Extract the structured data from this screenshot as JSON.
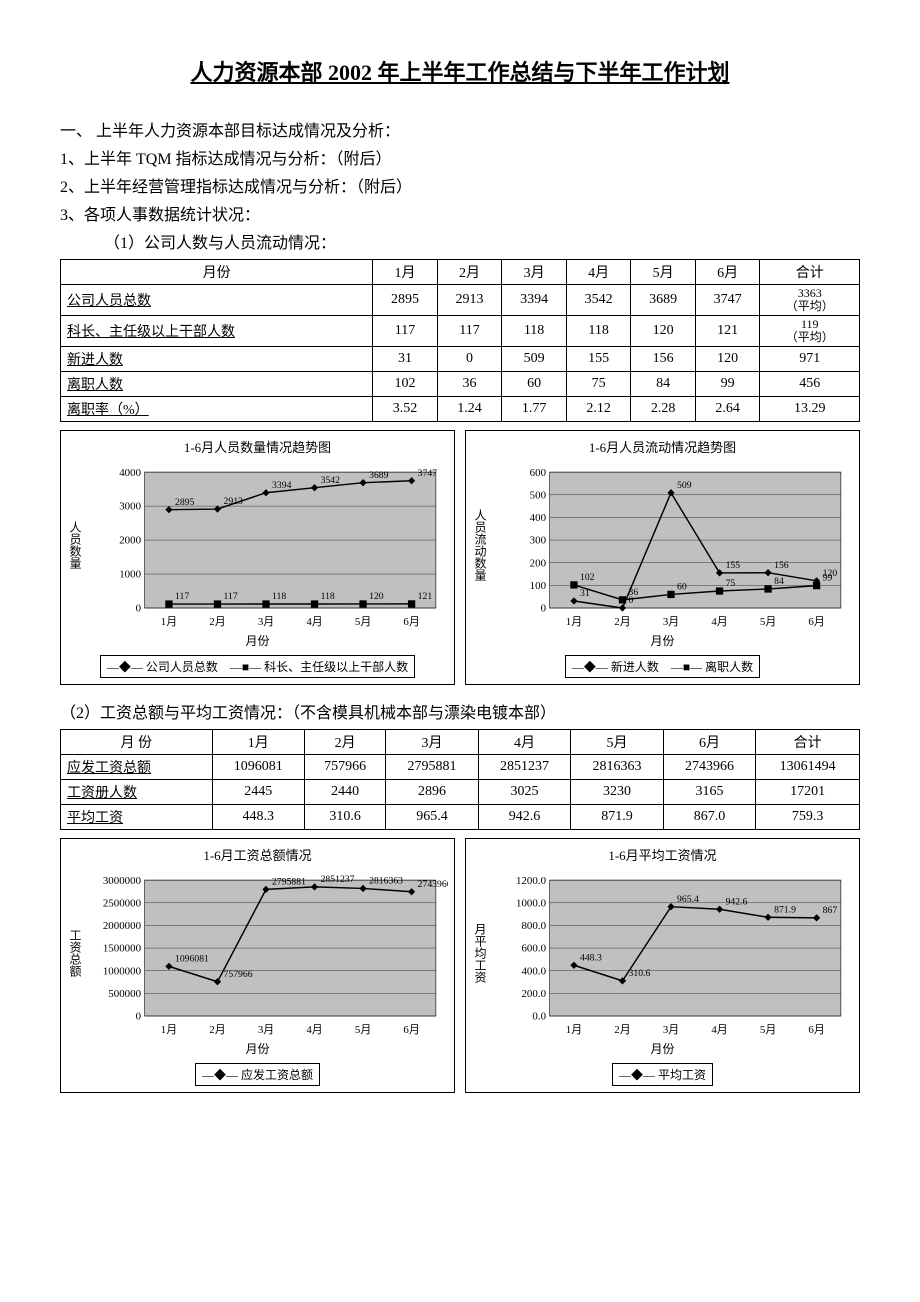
{
  "title": "人力资源本部 2002 年上半年工作总结与下半年工作计划",
  "sec1": "一、 上半年人力资源本部目标达成情况及分析：",
  "sec1_1": "1、上半年 TQM 指标达成情况与分析：（附后）",
  "sec1_2": "2、上半年经营管理指标达成情况与分析：（附后）",
  "sec1_3": "3、各项人事数据统计状况：",
  "sec1_3_1": "（1）公司人数与人员流动情况：",
  "table1": {
    "header": [
      "月份",
      "1月",
      "2月",
      "3月",
      "4月",
      "5月",
      "6月",
      "合计"
    ],
    "rows": [
      {
        "label": "公司人员总数",
        "cells": [
          "2895",
          "2913",
          "3394",
          "3542",
          "3689",
          "3747"
        ],
        "total": "3363",
        "totalSub": "（平均）"
      },
      {
        "label": "科长、主任级以上干部人数",
        "cells": [
          "117",
          "117",
          "118",
          "118",
          "120",
          "121"
        ],
        "total": "119",
        "totalSub": "（平均）"
      },
      {
        "label": "新进人数",
        "cells": [
          "31",
          "0",
          "509",
          "155",
          "156",
          "120"
        ],
        "total": "971"
      },
      {
        "label": "离职人数",
        "cells": [
          "102",
          "36",
          "60",
          "75",
          "84",
          "99"
        ],
        "total": "456"
      },
      {
        "label": "离职率（%）",
        "cells": [
          "3.52",
          "1.24",
          "1.77",
          "2.12",
          "2.28",
          "2.64"
        ],
        "total": "13.29"
      }
    ]
  },
  "chart1": {
    "title": "1-6月人员数量情况趋势图",
    "ylabel": "人员数量",
    "xlabel": "月份",
    "categories": [
      "1月",
      "2月",
      "3月",
      "4月",
      "5月",
      "6月"
    ],
    "yticks": [
      0,
      1000,
      2000,
      3000,
      4000
    ],
    "series": [
      {
        "name": "公司人员总数",
        "marker": "diamond",
        "values": [
          2895,
          2913,
          3394,
          3542,
          3689,
          3747
        ]
      },
      {
        "name": "科长、主任级以上干部人数",
        "marker": "square",
        "values": [
          117,
          117,
          118,
          118,
          120,
          121
        ]
      }
    ],
    "bg": "#c0c0c0",
    "line": "#000000"
  },
  "chart2": {
    "title": "1-6月人员流动情况趋势图",
    "ylabel": "人员流动数量",
    "xlabel": "月份",
    "categories": [
      "1月",
      "2月",
      "3月",
      "4月",
      "5月",
      "6月"
    ],
    "yticks": [
      0,
      100,
      200,
      300,
      400,
      500,
      600
    ],
    "series": [
      {
        "name": "新进人数",
        "marker": "diamond",
        "values": [
          31,
          0,
          509,
          155,
          156,
          120
        ]
      },
      {
        "name": "离职人数",
        "marker": "square",
        "values": [
          102,
          36,
          60,
          75,
          84,
          99
        ]
      }
    ],
    "bg": "#c0c0c0",
    "line": "#000000"
  },
  "sec1_3_2": "（2）工资总额与平均工资情况：（不含模具机械本部与漂染电镀本部）",
  "table2": {
    "header": [
      "月 份",
      "1月",
      "2月",
      "3月",
      "4月",
      "5月",
      "6月",
      "合计"
    ],
    "rows": [
      {
        "label": "应发工资总额",
        "cells": [
          "1096081",
          "757966",
          "2795881",
          "2851237",
          "2816363",
          "2743966"
        ],
        "total": "13061494"
      },
      {
        "label": "工资册人数",
        "cells": [
          "2445",
          "2440",
          "2896",
          "3025",
          "3230",
          "3165"
        ],
        "total": "17201"
      },
      {
        "label": "平均工资",
        "cells": [
          "448.3",
          "310.6",
          "965.4",
          "942.6",
          "871.9",
          "867.0"
        ],
        "total": "759.3"
      }
    ]
  },
  "chart3": {
    "title": "1-6月工资总额情况",
    "ylabel": "工资总额",
    "xlabel": "月份",
    "categories": [
      "1月",
      "2月",
      "3月",
      "4月",
      "5月",
      "6月"
    ],
    "yticks": [
      0,
      500000,
      1000000,
      1500000,
      2000000,
      2500000,
      3000000
    ],
    "series": [
      {
        "name": "应发工资总额",
        "marker": "diamond",
        "values": [
          1096081,
          757966,
          2795881,
          2851237,
          2816363,
          2743966
        ]
      }
    ],
    "bg": "#c0c0c0",
    "line": "#000000"
  },
  "chart4": {
    "title": "1-6月平均工资情况",
    "ylabel": "月平均工资",
    "xlabel": "月份",
    "categories": [
      "1月",
      "2月",
      "3月",
      "4月",
      "5月",
      "6月"
    ],
    "yticks": [
      0.0,
      200.0,
      400.0,
      600.0,
      800.0,
      1000.0,
      1200.0
    ],
    "ytickFormat": "fixed1",
    "series": [
      {
        "name": "平均工资",
        "marker": "diamond",
        "values": [
          448.3,
          310.6,
          965.4,
          942.6,
          871.9,
          867.0
        ]
      }
    ],
    "bg": "#c0c0c0",
    "line": "#000000"
  }
}
